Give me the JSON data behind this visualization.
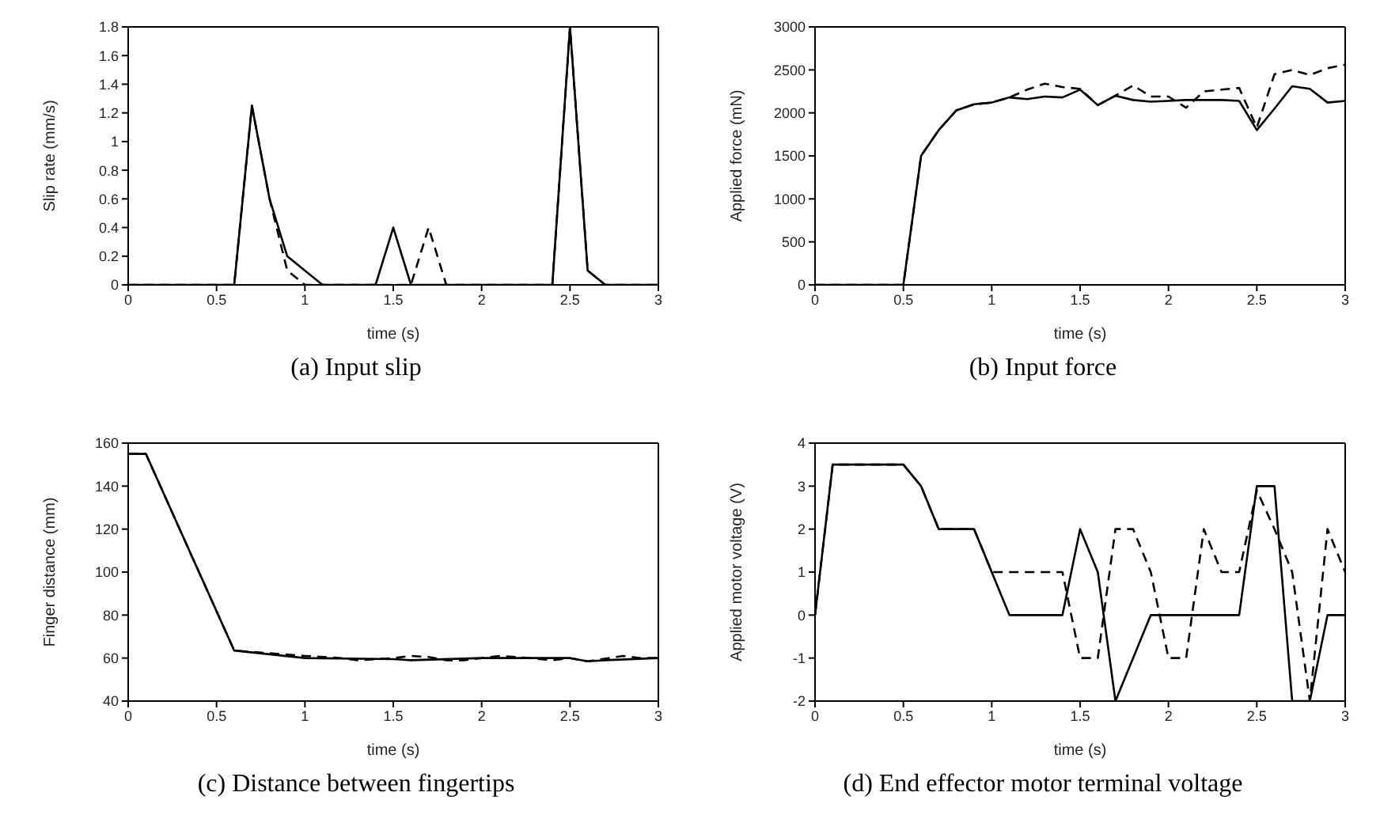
{
  "chart_data": [
    {
      "type": "line",
      "title": "(a) Input slip",
      "xlabel": "time (s)",
      "ylabel": "Slip rate (mm/s)",
      "xlim": [
        0,
        3
      ],
      "xticks": [
        0,
        0.5,
        1,
        1.5,
        2,
        2.5,
        3
      ],
      "ylim": [
        0,
        1.8
      ],
      "yticks": [
        0,
        0.2,
        0.4,
        0.6,
        0.8,
        1,
        1.2,
        1.4,
        1.6,
        1.8
      ],
      "marker": "none",
      "series": [
        {
          "color": "#000000",
          "line_style": "solid",
          "x": [
            0,
            0.6,
            0.7,
            0.8,
            0.9,
            1.0,
            1.1,
            1.4,
            1.5,
            1.6,
            2.4,
            2.5,
            2.6,
            2.7,
            3.0
          ],
          "values": [
            0,
            0,
            1.25,
            0.6,
            0.2,
            0.1,
            0,
            0,
            0.4,
            0,
            0,
            1.8,
            0.1,
            0,
            0
          ]
        },
        {
          "color": "#000000",
          "line_style": "dashed",
          "x": [
            0,
            0.6,
            0.7,
            0.8,
            0.9,
            1.0,
            1.6,
            1.7,
            1.8,
            2.4,
            2.5,
            2.6,
            2.7,
            3.0
          ],
          "values": [
            0,
            0,
            1.25,
            0.6,
            0.1,
            0,
            0,
            0.4,
            0,
            0,
            1.8,
            0.1,
            0,
            0
          ]
        }
      ]
    },
    {
      "type": "line",
      "title": "(b) Input force",
      "xlabel": "time (s)",
      "ylabel": "Applied force (mN)",
      "xlim": [
        0,
        3
      ],
      "xticks": [
        0,
        0.5,
        1,
        1.5,
        2,
        2.5,
        3
      ],
      "ylim": [
        0,
        3000
      ],
      "yticks": [
        0,
        500,
        1000,
        1500,
        2000,
        2500,
        3000
      ],
      "marker": "none",
      "series": [
        {
          "color": "#000000",
          "line_style": "solid",
          "x": [
            0,
            0.5,
            0.6,
            0.7,
            0.8,
            0.9,
            1.0,
            1.1,
            1.2,
            1.3,
            1.4,
            1.5,
            1.6,
            1.7,
            1.8,
            1.9,
            2.0,
            2.1,
            2.2,
            2.3,
            2.4,
            2.5,
            2.6,
            2.7,
            2.8,
            2.9,
            3.0
          ],
          "values": [
            0,
            0,
            1500,
            1800,
            2030,
            2100,
            2120,
            2180,
            2160,
            2190,
            2180,
            2270,
            2090,
            2200,
            2150,
            2130,
            2140,
            2150,
            2150,
            2150,
            2140,
            1800,
            2050,
            2310,
            2280,
            2120,
            2140
          ]
        },
        {
          "color": "#000000",
          "line_style": "dashed",
          "x": [
            0,
            0.5,
            0.6,
            0.7,
            0.8,
            0.9,
            1.0,
            1.1,
            1.2,
            1.3,
            1.4,
            1.5,
            1.6,
            1.7,
            1.8,
            1.9,
            2.0,
            2.1,
            2.2,
            2.3,
            2.4,
            2.5,
            2.6,
            2.7,
            2.8,
            2.9,
            3.0
          ],
          "values": [
            0,
            0,
            1500,
            1800,
            2030,
            2100,
            2120,
            2180,
            2270,
            2340,
            2300,
            2280,
            2090,
            2200,
            2320,
            2190,
            2190,
            2060,
            2250,
            2270,
            2290,
            1830,
            2450,
            2500,
            2440,
            2520,
            2560
          ]
        }
      ]
    },
    {
      "type": "line",
      "title": "(c) Distance between fingertips",
      "xlabel": "time (s)",
      "ylabel": "Finger distance (mm)",
      "xlim": [
        0,
        3
      ],
      "xticks": [
        0,
        0.5,
        1,
        1.5,
        2,
        2.5,
        3
      ],
      "ylim": [
        40,
        160
      ],
      "yticks": [
        40,
        60,
        80,
        100,
        120,
        140,
        160
      ],
      "marker": "none",
      "series": [
        {
          "color": "#000000",
          "line_style": "solid",
          "x": [
            0,
            0.1,
            0.6,
            1.0,
            1.5,
            1.6,
            2.0,
            2.5,
            2.6,
            2.7,
            3.0
          ],
          "values": [
            155,
            155,
            63.5,
            60,
            59.5,
            59,
            60,
            60,
            58.5,
            59,
            60
          ]
        },
        {
          "color": "#000000",
          "line_style": "dashed",
          "x": [
            0,
            0.1,
            0.6,
            1.0,
            1.2,
            1.3,
            1.5,
            1.6,
            1.7,
            1.8,
            1.9,
            2.0,
            2.1,
            2.2,
            2.4,
            2.5,
            2.6,
            2.8,
            2.9,
            3.0
          ],
          "values": [
            155,
            155,
            63.5,
            61,
            60,
            59,
            60,
            61,
            60.5,
            59,
            59,
            60,
            61,
            60.5,
            59,
            60,
            58.5,
            61,
            60,
            60
          ]
        }
      ]
    },
    {
      "type": "line",
      "title": "(d) End effector motor terminal voltage",
      "xlabel": "time (s)",
      "ylabel": "Applied motor voltage (V)",
      "xlim": [
        0,
        3
      ],
      "xticks": [
        0,
        0.5,
        1,
        1.5,
        2,
        2.5,
        3
      ],
      "ylim": [
        -2,
        4
      ],
      "yticks": [
        -2,
        -1,
        0,
        1,
        2,
        3,
        4
      ],
      "marker": "none",
      "series": [
        {
          "color": "#000000",
          "line_style": "solid",
          "x": [
            0,
            0.1,
            0.5,
            0.6,
            0.7,
            0.9,
            1.0,
            1.1,
            1.4,
            1.5,
            1.6,
            1.7,
            1.9,
            2.4,
            2.5,
            2.6,
            2.7,
            2.8,
            2.9,
            3.0
          ],
          "values": [
            0,
            3.5,
            3.5,
            3,
            2,
            2,
            1,
            0,
            0,
            2,
            1,
            -2,
            0,
            0,
            3,
            3,
            -2,
            -2,
            0,
            0
          ]
        },
        {
          "color": "#000000",
          "line_style": "dashed",
          "x": [
            0,
            0.1,
            0.5,
            0.6,
            0.7,
            0.9,
            1.0,
            1.4,
            1.5,
            1.6,
            1.7,
            1.8,
            1.9,
            2.0,
            2.1,
            2.2,
            2.3,
            2.4,
            2.5,
            2.6,
            2.7,
            2.8,
            2.9,
            3.0
          ],
          "values": [
            0,
            3.5,
            3.5,
            3,
            2,
            2,
            1,
            1,
            -1,
            -1,
            2,
            2,
            1,
            -1,
            -1,
            2,
            1,
            1,
            2.9,
            2,
            1,
            -2,
            2,
            1
          ]
        }
      ]
    }
  ]
}
